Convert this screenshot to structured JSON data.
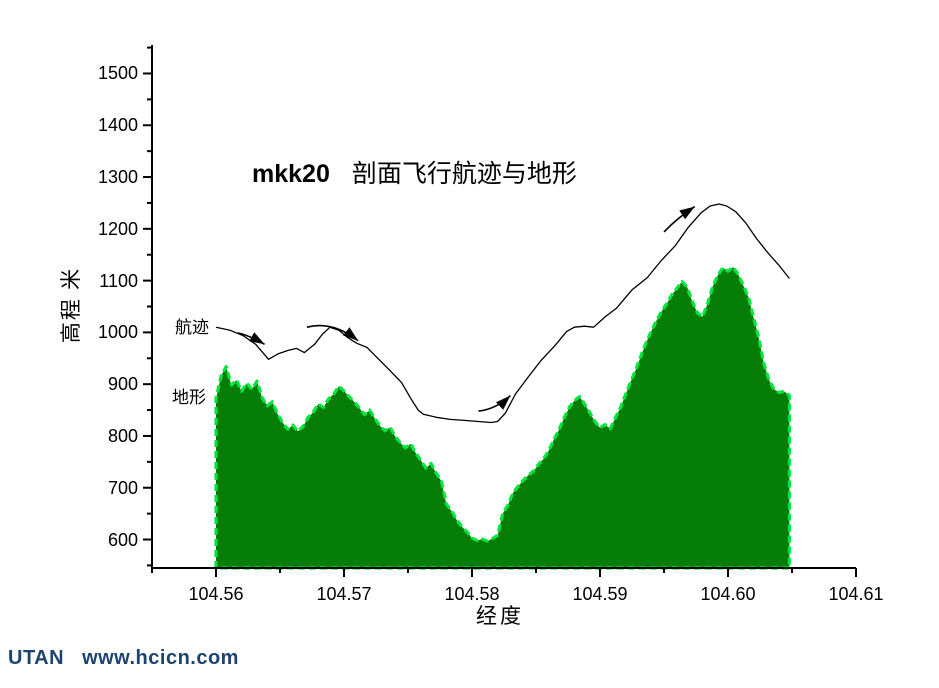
{
  "title": {
    "prefix": "mkk20",
    "text": "剖面飞行航迹与地形"
  },
  "footer": {
    "brand": "UTAN",
    "url": "www.hcicn.com",
    "color": "#1d4370"
  },
  "chart_data": {
    "type": "area",
    "title": "mkk20 剖面飞行航迹与地形",
    "xlabel": "经度",
    "ylabel": "高程 米",
    "grid": false,
    "legend_position": "inline-annotations",
    "xlim": [
      104.555,
      104.61
    ],
    "ylim": [
      545,
      1555
    ],
    "x_ticks": [
      104.56,
      104.57,
      104.58,
      104.59,
      104.6,
      104.61
    ],
    "x_tick_labels": [
      "104.56",
      "104.57",
      "104.58",
      "104.59",
      "104.60",
      "104.61"
    ],
    "x_minor_ticks": [
      104.555,
      104.565,
      104.575,
      104.585,
      104.595,
      104.605
    ],
    "y_ticks": [
      600,
      700,
      800,
      900,
      1000,
      1100,
      1200,
      1300,
      1400,
      1500
    ],
    "y_tick_labels": [
      "600",
      "700",
      "800",
      "900",
      "1000",
      "1100",
      "1200",
      "1300",
      "1400",
      "1500"
    ],
    "y_minor_ticks": [
      550,
      650,
      750,
      850,
      950,
      1050,
      1150,
      1250,
      1350,
      1450,
      1550
    ],
    "colors": {
      "axis": "#000000",
      "flight_line": "#000000",
      "terrain_fill": "#067d06",
      "terrain_edge": "#00e63e"
    },
    "annotations": [
      {
        "label": "航迹",
        "x": 104.5565,
        "y": 1015,
        "series": "flight"
      },
      {
        "label": "地形",
        "x": 104.5563,
        "y": 880,
        "series": "terrain"
      }
    ],
    "series": [
      {
        "name": "航迹",
        "type": "line",
        "color": "#000000",
        "points": [
          [
            104.56,
            1010
          ],
          [
            104.5611,
            1004
          ],
          [
            104.5621,
            994
          ],
          [
            104.5631,
            977
          ],
          [
            104.5641,
            948
          ],
          [
            104.5649,
            959
          ],
          [
            104.5656,
            965
          ],
          [
            104.5663,
            969
          ],
          [
            104.5669,
            961
          ],
          [
            104.5677,
            977
          ],
          [
            104.5683,
            996
          ],
          [
            104.5689,
            1010
          ],
          [
            104.5696,
            1004
          ],
          [
            104.5703,
            990
          ],
          [
            104.571,
            979
          ],
          [
            104.5718,
            971
          ],
          [
            104.5726,
            951
          ],
          [
            104.5736,
            926
          ],
          [
            104.5745,
            903
          ],
          [
            104.5752,
            873
          ],
          [
            104.5758,
            850
          ],
          [
            104.5762,
            842
          ],
          [
            104.5772,
            836
          ],
          [
            104.5783,
            832
          ],
          [
            104.5794,
            830
          ],
          [
            104.5805,
            828
          ],
          [
            104.5815,
            826
          ],
          [
            104.582,
            828
          ],
          [
            104.5826,
            844
          ],
          [
            104.5834,
            881
          ],
          [
            104.5844,
            914
          ],
          [
            104.5854,
            946
          ],
          [
            104.5865,
            975
          ],
          [
            104.5874,
            1002
          ],
          [
            104.588,
            1010
          ],
          [
            104.5888,
            1012
          ],
          [
            104.5895,
            1010
          ],
          [
            104.5904,
            1030
          ],
          [
            104.5913,
            1047
          ],
          [
            104.5925,
            1082
          ],
          [
            104.5937,
            1106
          ],
          [
            104.5948,
            1139
          ],
          [
            104.5959,
            1168
          ],
          [
            104.5969,
            1203
          ],
          [
            104.5979,
            1231
          ],
          [
            104.5986,
            1244
          ],
          [
            104.5993,
            1248
          ],
          [
            104.5999,
            1244
          ],
          [
            104.6006,
            1233
          ],
          [
            104.6014,
            1211
          ],
          [
            104.6022,
            1182
          ],
          [
            104.6031,
            1154
          ],
          [
            104.604,
            1129
          ],
          [
            104.6048,
            1104
          ]
        ]
      },
      {
        "name": "地形",
        "type": "area",
        "fill": "#067d06",
        "edge": "#00e63e",
        "baseline": 545,
        "points": [
          [
            104.56,
            872
          ],
          [
            104.5604,
            916
          ],
          [
            104.5608,
            934
          ],
          [
            104.5612,
            898
          ],
          [
            104.5616,
            908
          ],
          [
            104.562,
            886
          ],
          [
            104.5624,
            902
          ],
          [
            104.5628,
            890
          ],
          [
            104.5632,
            906
          ],
          [
            104.5636,
            874
          ],
          [
            104.564,
            858
          ],
          [
            104.5644,
            866
          ],
          [
            104.5648,
            843
          ],
          [
            104.5652,
            826
          ],
          [
            104.5656,
            813
          ],
          [
            104.566,
            821
          ],
          [
            104.5664,
            809
          ],
          [
            104.5668,
            818
          ],
          [
            104.5672,
            836
          ],
          [
            104.5676,
            846
          ],
          [
            104.568,
            862
          ],
          [
            104.5684,
            855
          ],
          [
            104.5688,
            872
          ],
          [
            104.5692,
            881
          ],
          [
            104.5696,
            896
          ],
          [
            104.57,
            887
          ],
          [
            104.5704,
            876
          ],
          [
            104.5708,
            866
          ],
          [
            104.5712,
            854
          ],
          [
            104.5716,
            841
          ],
          [
            104.572,
            850
          ],
          [
            104.5724,
            834
          ],
          [
            104.5728,
            820
          ],
          [
            104.5732,
            810
          ],
          [
            104.5736,
            817
          ],
          [
            104.574,
            799
          ],
          [
            104.5744,
            787
          ],
          [
            104.5748,
            777
          ],
          [
            104.5752,
            785
          ],
          [
            104.5756,
            767
          ],
          [
            104.576,
            753
          ],
          [
            104.5764,
            738
          ],
          [
            104.5768,
            747
          ],
          [
            104.5772,
            728
          ],
          [
            104.5776,
            713
          ],
          [
            104.578,
            668
          ],
          [
            104.5784,
            655
          ],
          [
            104.5788,
            638
          ],
          [
            104.5792,
            625
          ],
          [
            104.5796,
            615
          ],
          [
            104.58,
            603
          ],
          [
            104.5804,
            598
          ],
          [
            104.5808,
            601
          ],
          [
            104.5812,
            597
          ],
          [
            104.5816,
            602
          ],
          [
            104.582,
            608
          ],
          [
            104.5824,
            650
          ],
          [
            104.5828,
            666
          ],
          [
            104.5832,
            690
          ],
          [
            104.5836,
            703
          ],
          [
            104.584,
            714
          ],
          [
            104.5844,
            724
          ],
          [
            104.5848,
            732
          ],
          [
            104.5852,
            745
          ],
          [
            104.5856,
            756
          ],
          [
            104.586,
            772
          ],
          [
            104.5864,
            793
          ],
          [
            104.5868,
            812
          ],
          [
            104.5872,
            835
          ],
          [
            104.5876,
            855
          ],
          [
            104.588,
            868
          ],
          [
            104.5884,
            876
          ],
          [
            104.5888,
            862
          ],
          [
            104.5892,
            845
          ],
          [
            104.5896,
            828
          ],
          [
            104.59,
            816
          ],
          [
            104.5904,
            822
          ],
          [
            104.5908,
            814
          ],
          [
            104.5912,
            835
          ],
          [
            104.5916,
            855
          ],
          [
            104.592,
            880
          ],
          [
            104.5924,
            905
          ],
          [
            104.5928,
            928
          ],
          [
            104.5932,
            955
          ],
          [
            104.5936,
            980
          ],
          [
            104.594,
            1002
          ],
          [
            104.5944,
            1022
          ],
          [
            104.5948,
            1040
          ],
          [
            104.5952,
            1055
          ],
          [
            104.5956,
            1072
          ],
          [
            104.596,
            1085
          ],
          [
            104.5964,
            1098
          ],
          [
            104.5968,
            1088
          ],
          [
            104.5972,
            1060
          ],
          [
            104.5976,
            1038
          ],
          [
            104.598,
            1030
          ],
          [
            104.5984,
            1055
          ],
          [
            104.5988,
            1088
          ],
          [
            104.5992,
            1110
          ],
          [
            104.5996,
            1125
          ],
          [
            104.6,
            1118
          ],
          [
            104.6004,
            1126
          ],
          [
            104.6008,
            1112
          ],
          [
            104.6012,
            1090
          ],
          [
            104.6016,
            1068
          ],
          [
            104.602,
            1028
          ],
          [
            104.6024,
            990
          ],
          [
            104.6028,
            940
          ],
          [
            104.6032,
            908
          ],
          [
            104.6036,
            890
          ],
          [
            104.604,
            884
          ],
          [
            104.6044,
            886
          ],
          [
            104.6048,
            878
          ]
        ]
      }
    ],
    "arrows": [
      {
        "tail": [
          104.5617,
          999
        ],
        "ctrl": [
          104.5627,
          993
        ],
        "tip": [
          104.5638,
          977
        ]
      },
      {
        "tail": [
          104.5671,
          1010
        ],
        "ctrl": [
          104.5691,
          1023
        ],
        "tip": [
          104.5711,
          984
        ]
      },
      {
        "tail": [
          104.5805,
          848
        ],
        "ctrl": [
          104.5819,
          852
        ],
        "tip": [
          104.583,
          878
        ]
      },
      {
        "tail": [
          104.595,
          1194
        ],
        "ctrl": [
          104.596,
          1220
        ],
        "tip": [
          104.5974,
          1243
        ]
      }
    ]
  }
}
